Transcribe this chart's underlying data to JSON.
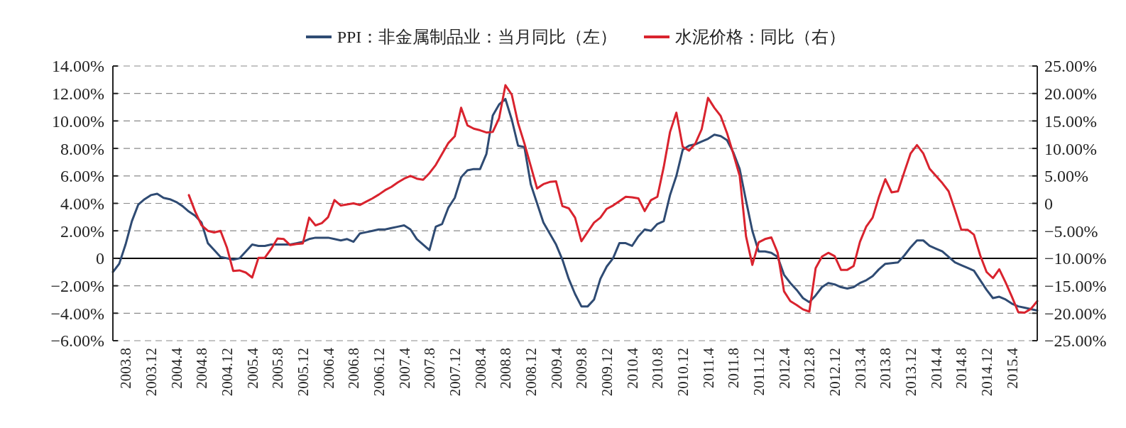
{
  "chart_data": {
    "type": "line",
    "categories": [
      null,
      null,
      "2003.8",
      null,
      null,
      null,
      "2003.12",
      null,
      null,
      null,
      "2004.4",
      null,
      null,
      null,
      "2004.8",
      null,
      null,
      null,
      "2004.12",
      null,
      null,
      null,
      "2005.4",
      null,
      null,
      null,
      "2005.8",
      null,
      null,
      null,
      "2005.12",
      null,
      null,
      null,
      "2006.4",
      null,
      null,
      null,
      "2006.8",
      null,
      null,
      null,
      "2006.12",
      null,
      null,
      null,
      "2007.4",
      null,
      null,
      null,
      "2007.8",
      null,
      null,
      null,
      "2007.12",
      null,
      null,
      null,
      "2008.4",
      null,
      null,
      null,
      "2008.8",
      null,
      null,
      null,
      "2008.12",
      null,
      null,
      null,
      "2009.4",
      null,
      null,
      null,
      "2009.8",
      null,
      null,
      null,
      "2009.12",
      null,
      null,
      null,
      "2010.4",
      null,
      null,
      null,
      "2010.8",
      null,
      null,
      null,
      "2010.12",
      null,
      null,
      null,
      "2011.4",
      null,
      null,
      null,
      "2011.8",
      null,
      null,
      null,
      "2011.12",
      null,
      null,
      null,
      "2012.4",
      null,
      null,
      null,
      "2012.8",
      null,
      null,
      null,
      "2012.12",
      null,
      null,
      null,
      "2013.4",
      null,
      null,
      null,
      "2013.8",
      null,
      null,
      null,
      "2013.12",
      null,
      null,
      null,
      "2014.4",
      null,
      null,
      null,
      "2014.8",
      null,
      null,
      null,
      "2014.12",
      null,
      null,
      null,
      "2015.4",
      null,
      null,
      null,
      null
    ],
    "series": [
      {
        "name": "PPI：非金属制品业：当月同比（左）",
        "color": "#2f4b73",
        "values": [
          -1.0,
          -0.4,
          1.0,
          2.7,
          3.9,
          4.3,
          4.6,
          4.7,
          4.4,
          4.3,
          4.1,
          3.8,
          3.4,
          3.1,
          2.6,
          1.1,
          0.6,
          0.1,
          0.0,
          -0.1,
          0.0,
          0.5,
          1.0,
          0.9,
          0.9,
          1.0,
          1.0,
          1.0,
          1.0,
          1.1,
          1.2,
          1.4,
          1.5,
          1.5,
          1.5,
          1.4,
          1.3,
          1.4,
          1.2,
          1.8,
          1.9,
          2.0,
          2.1,
          2.1,
          2.2,
          2.3,
          2.4,
          2.1,
          1.4,
          1.0,
          0.6,
          2.3,
          2.5,
          3.7,
          4.4,
          5.9,
          6.4,
          6.5,
          6.5,
          7.6,
          10.4,
          11.2,
          11.6,
          10.1,
          8.2,
          8.1,
          5.4,
          4.0,
          2.6,
          1.8,
          1.0,
          -0.1,
          -1.5,
          -2.6,
          -3.5,
          -3.5,
          -3.0,
          -1.5,
          -0.6,
          0.0,
          1.1,
          1.1,
          0.9,
          1.6,
          2.1,
          2.0,
          2.5,
          2.7,
          4.6,
          6.0,
          7.9,
          8.2,
          8.3,
          8.5,
          8.7,
          9.0,
          8.9,
          8.6,
          7.7,
          6.5,
          4.2,
          2.0,
          0.5,
          0.5,
          0.4,
          0.1,
          -1.2,
          -1.8,
          -2.3,
          -2.9,
          -3.2,
          -2.7,
          -2.1,
          -1.8,
          -1.9,
          -2.1,
          -2.2,
          -2.1,
          -1.8,
          -1.6,
          -1.3,
          -0.8,
          -0.4,
          -0.35,
          -0.3,
          0.2,
          0.8,
          1.3,
          1.3,
          0.9,
          0.7,
          0.5,
          0.1,
          -0.3,
          -0.5,
          -0.7,
          -0.9,
          -1.6,
          -2.3,
          -2.9,
          -2.8,
          -3.0,
          -3.3,
          -3.5,
          -3.6,
          -3.7,
          -3.8
        ]
      },
      {
        "name": "水泥价格：同比（右）",
        "color": "#d9232e",
        "axis": "y2",
        "values": [
          null,
          null,
          null,
          null,
          null,
          null,
          null,
          null,
          null,
          null,
          null,
          null,
          1.5,
          -1.5,
          -4.0,
          -5.0,
          -5.3,
          -5.0,
          -8.0,
          -12.3,
          -12.2,
          -12.6,
          -13.5,
          -9.9,
          -9.9,
          -8.3,
          -6.4,
          -6.5,
          -7.6,
          -7.4,
          -7.3,
          -2.6,
          -4.0,
          -3.6,
          -2.5,
          0.6,
          -0.4,
          -0.2,
          0.0,
          -0.3,
          0.3,
          0.9,
          1.6,
          2.4,
          3.0,
          3.8,
          4.5,
          5.0,
          4.5,
          4.3,
          5.5,
          7.0,
          9.0,
          11.0,
          12.2,
          17.4,
          14.2,
          13.6,
          13.3,
          12.9,
          13.0,
          15.5,
          21.5,
          19.8,
          14.6,
          10.9,
          6.8,
          2.7,
          3.5,
          3.9,
          4.0,
          -0.5,
          -0.9,
          -2.6,
          -6.9,
          -5.2,
          -3.5,
          -2.6,
          -1.0,
          -0.4,
          0.4,
          1.2,
          1.1,
          0.9,
          -1.4,
          0.6,
          1.2,
          6.6,
          13.0,
          16.5,
          10.3,
          9.6,
          10.9,
          13.5,
          19.2,
          17.4,
          15.9,
          12.8,
          9.0,
          5.0,
          -6.0,
          -11.2,
          -7.1,
          -6.5,
          -6.2,
          -9.0,
          -16.0,
          -17.8,
          -18.5,
          -19.3,
          -19.7,
          -11.8,
          -9.7,
          -9.0,
          -9.6,
          -12.1,
          -12.1,
          -11.4,
          -7.0,
          -4.2,
          -2.6,
          1.2,
          4.4,
          2.0,
          2.2,
          5.7,
          9.1,
          10.6,
          9.1,
          6.3,
          5.0,
          3.7,
          2.2,
          -1.2,
          -4.8,
          -4.8,
          -5.7,
          -9.5,
          -12.5,
          -13.6,
          -12.0,
          -14.4,
          -17.0,
          -19.8,
          -19.9,
          -19.2,
          -17.8
        ]
      }
    ],
    "ylim": [
      -6,
      14
    ],
    "yticks": [
      {
        "value": -6,
        "label": "−6.00%"
      },
      {
        "value": -4,
        "label": "−4.00%"
      },
      {
        "value": -2,
        "label": "−2.00%"
      },
      0,
      {
        "value": 2,
        "label": "2.00%"
      },
      {
        "value": 4,
        "label": "4.00%"
      },
      {
        "value": 6,
        "label": "6.00%"
      },
      {
        "value": 8,
        "label": "8.00%"
      },
      {
        "value": 10,
        "label": "10.00%"
      },
      {
        "value": 12,
        "label": "12.00%"
      },
      {
        "value": 14,
        "label": "14.00%"
      }
    ],
    "y2lim": [
      -25,
      25
    ],
    "y2ticks": [
      {
        "value": -25,
        "label": "−25.00%"
      },
      {
        "value": -20,
        "label": "−20.00%"
      },
      {
        "value": -15,
        "label": "−15.00%"
      },
      {
        "value": -10,
        "label": "−10.00%"
      },
      {
        "value": -5,
        "label": "−5.00%"
      },
      0,
      {
        "value": 5,
        "label": "5.00%"
      },
      {
        "value": 10,
        "label": "10.00%"
      },
      {
        "value": 15,
        "label": "15.00%"
      },
      {
        "value": 20,
        "label": "20.00%"
      },
      {
        "value": 25,
        "label": "25.00%"
      }
    ],
    "ref_lines": [
      {
        "axis": "y",
        "value": 0,
        "color": "#000000"
      }
    ],
    "grid": "y",
    "legend": "top"
  }
}
